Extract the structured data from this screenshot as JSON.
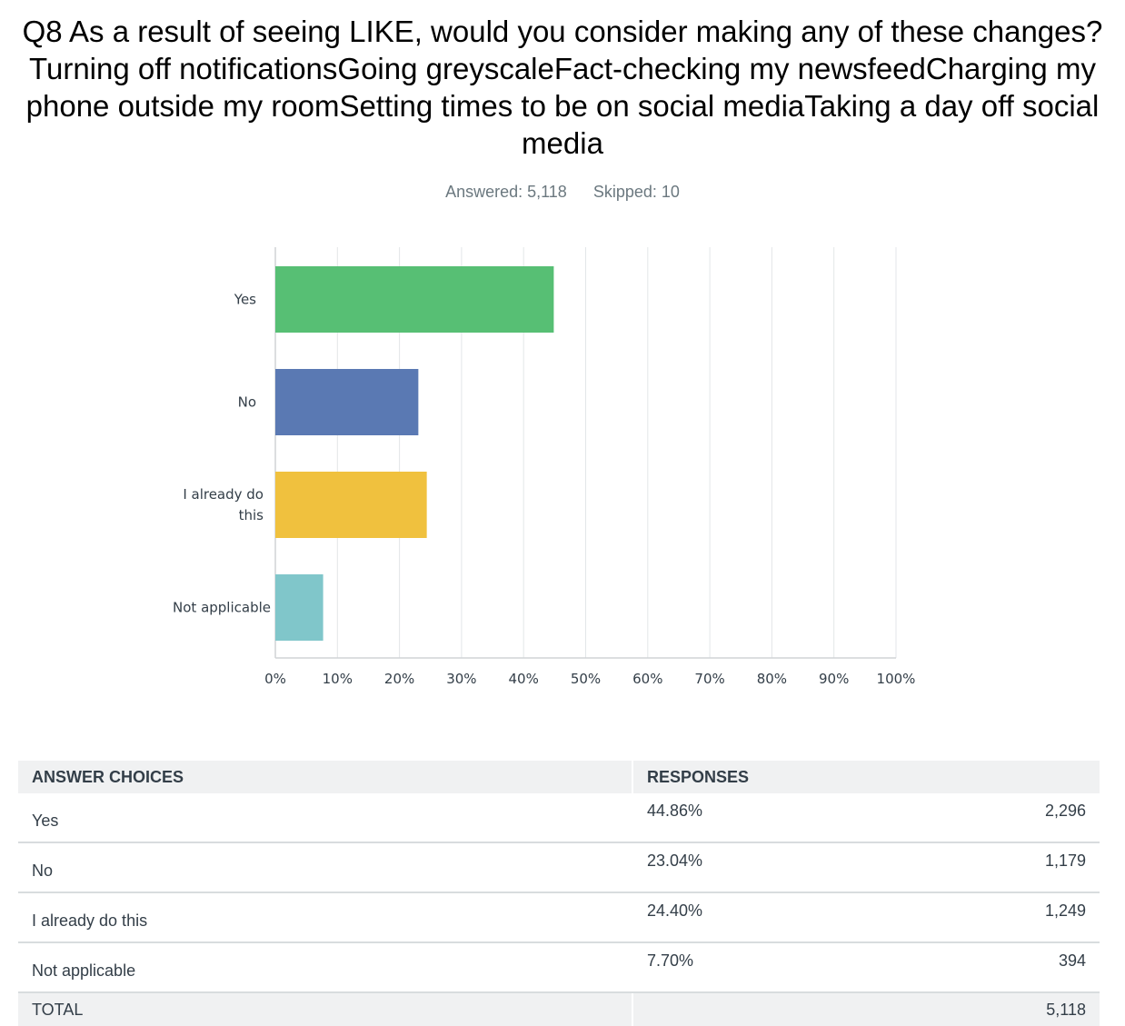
{
  "question": {
    "title": "Q8 As a result of seeing LIKE, would you consider making any of these changes? Turning off notificationsGoing greyscaleFact-checking my newsfeedCharging my phone outside my roomSetting times to be on social mediaTaking a day off social media",
    "answered": "Answered: 5,118",
    "skipped": "Skipped: 10"
  },
  "chart_data": {
    "type": "bar",
    "orientation": "horizontal",
    "categories": [
      "Yes",
      "No",
      "I already do this",
      "Not applicable"
    ],
    "category_lines": [
      [
        "Yes"
      ],
      [
        "No"
      ],
      [
        "I already do",
        "this"
      ],
      [
        "Not applicable"
      ]
    ],
    "values": [
      44.86,
      23.04,
      24.4,
      7.7
    ],
    "colors": [
      "#57bf74",
      "#5a79b3",
      "#f0c13e",
      "#80c6ca"
    ],
    "xlim": [
      0,
      100
    ],
    "xticks": [
      "0%",
      "10%",
      "20%",
      "30%",
      "40%",
      "50%",
      "60%",
      "70%",
      "80%",
      "90%",
      "100%"
    ],
    "grid": true
  },
  "table": {
    "headers": {
      "choices": "ANSWER CHOICES",
      "responses": "RESPONSES"
    },
    "rows": [
      {
        "choice": "Yes",
        "percent": "44.86%",
        "count": "2,296"
      },
      {
        "choice": "No",
        "percent": "23.04%",
        "count": "1,179"
      },
      {
        "choice": "I already do this",
        "percent": "24.40%",
        "count": "1,249"
      },
      {
        "choice": "Not applicable",
        "percent": "7.70%",
        "count": "394"
      }
    ],
    "total": {
      "label": "TOTAL",
      "count": "5,118"
    }
  }
}
